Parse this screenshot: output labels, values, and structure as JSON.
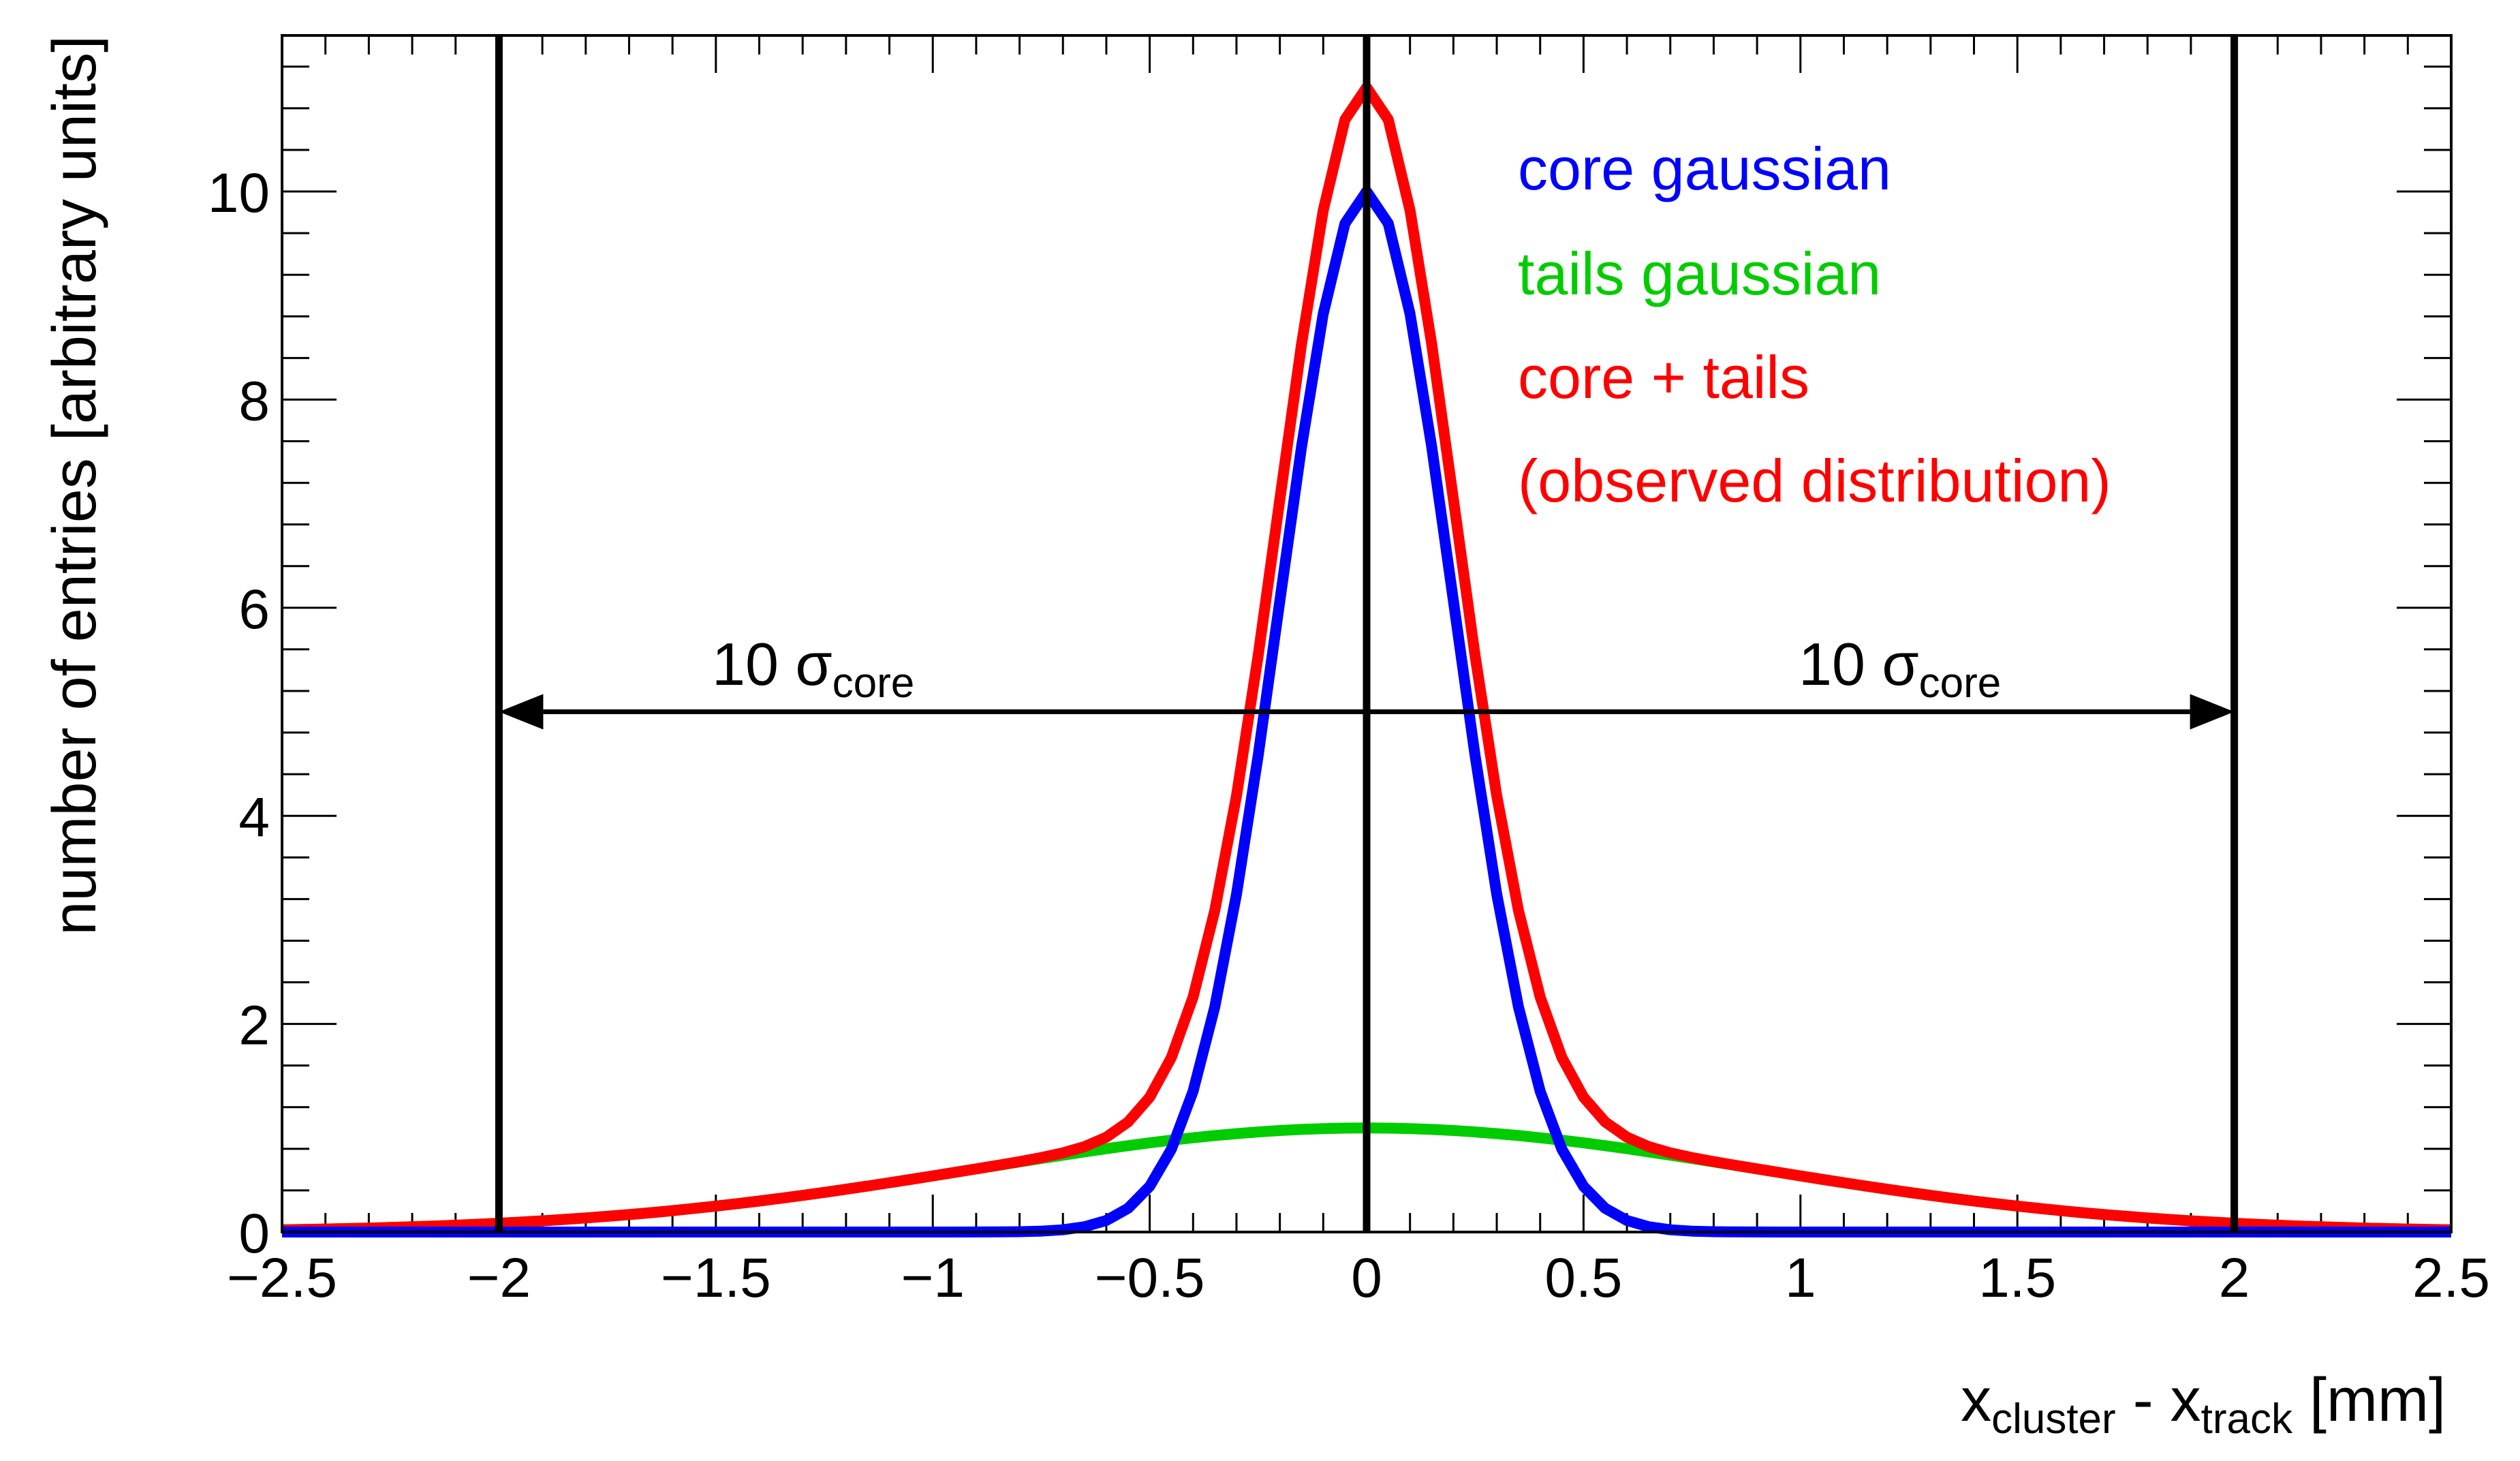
{
  "chart_data": {
    "type": "line",
    "title": "",
    "xlabel": {
      "main1": "x",
      "sub1": "cluster",
      "mid": " - x",
      "sub2": "track",
      "tail": " [mm]"
    },
    "ylabel": "number of entries [arbitrary units]",
    "xlim": [
      -2.5,
      2.5
    ],
    "ylim": [
      0,
      11.5
    ],
    "x_ticks": [
      -2.5,
      -2,
      -1.5,
      -1,
      -0.5,
      0,
      0.5,
      1,
      1.5,
      2,
      2.5
    ],
    "x_tick_labels": [
      "−2.5",
      "−2",
      "−1.5",
      "−1",
      "−0.5",
      "0",
      "0.5",
      "1",
      "1.5",
      "2",
      "2.5"
    ],
    "y_ticks": [
      0,
      2,
      4,
      6,
      8,
      10
    ],
    "y_tick_labels": [
      "0",
      "2",
      "4",
      "6",
      "8",
      "10"
    ],
    "grid": false,
    "legend_position": "top-right",
    "series": [
      {
        "name": "core gaussian",
        "color": "#0000ff",
        "model": "gauss",
        "amplitude": 10,
        "mean": 0,
        "sigma": 0.2
      },
      {
        "name": "tails gaussian",
        "color": "#00cc00",
        "model": "gauss",
        "amplitude": 1,
        "mean": 0,
        "sigma": 0.9
      },
      {
        "name": "core + tails",
        "color": "#ff0000",
        "model": "sum"
      }
    ],
    "legend": [
      {
        "text": "core gaussian",
        "color": "#0000ff"
      },
      {
        "text": "tails gaussian",
        "color": "#00cc00"
      },
      {
        "text": "core + tails",
        "color": "#ff0000"
      },
      {
        "text": "(observed distribution)",
        "color": "#ff0000"
      }
    ],
    "vertical_lines": [
      {
        "x": -2,
        "color": "#000000"
      },
      {
        "x": 0,
        "color": "#000000"
      },
      {
        "x": 2,
        "color": "#000000"
      }
    ],
    "arrows": [
      {
        "from_x": 0,
        "to_x": -2,
        "y": 5,
        "label_main": "10 σ",
        "label_sub": "core"
      },
      {
        "from_x": 0,
        "to_x": 2,
        "y": 5,
        "label_main": "10 σ",
        "label_sub": "core"
      }
    ]
  }
}
